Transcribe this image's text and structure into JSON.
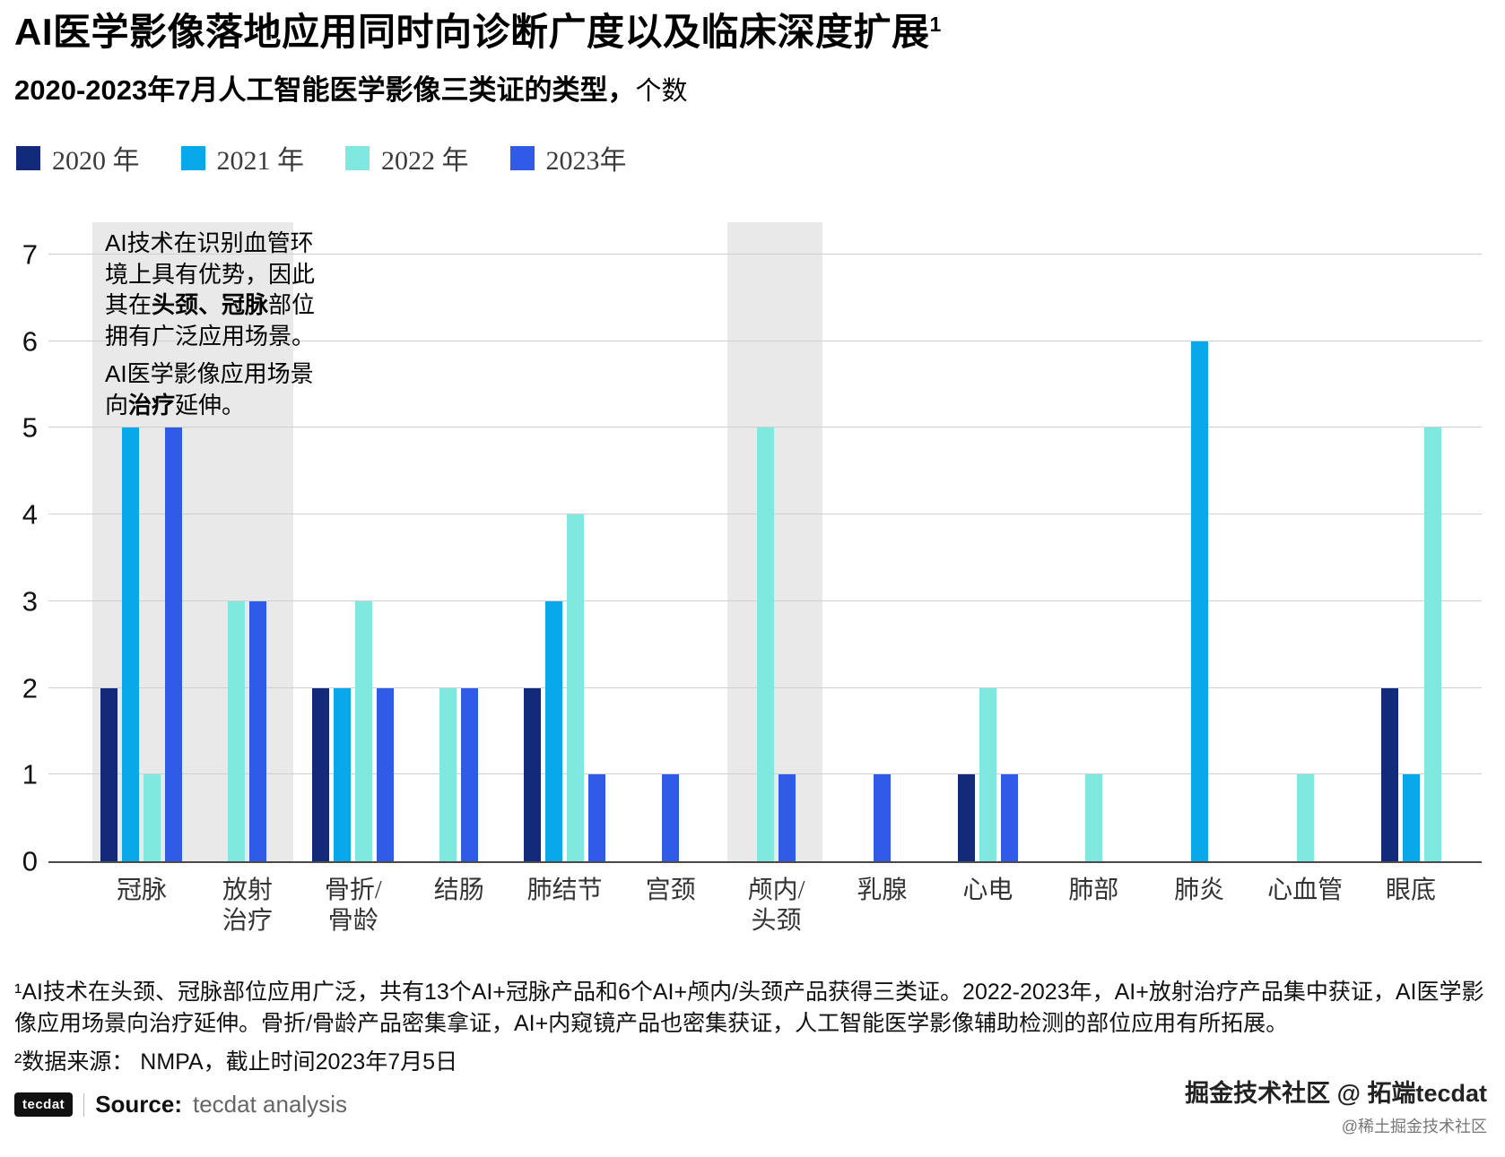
{
  "header": {
    "title": "AI医学影像落地应用同时向诊断广度以及临床深度扩展",
    "title_sup": "1",
    "subtitle_bold": "2020-2023年7月人工智能医学影像三类证的类型，",
    "subtitle_light": "个数"
  },
  "legend": {
    "items": [
      {
        "label": "2020 年",
        "color": "#13297A"
      },
      {
        "label": "2021 年",
        "color": "#09A8EA"
      },
      {
        "label": "2022 年",
        "color": "#7FE9E0"
      },
      {
        "label": "2023年",
        "color": "#2F5BE7"
      }
    ]
  },
  "annotation": {
    "paragraphs": [
      [
        {
          "text": "AI技术在识别血管环境上具有优势，因此其在",
          "bold": false
        },
        {
          "text": "头颈、冠脉",
          "bold": true
        },
        {
          "text": "部位拥有广泛应用场景。",
          "bold": false
        }
      ],
      [
        {
          "text": "AI医学影像应用场景向",
          "bold": false
        },
        {
          "text": "治疗",
          "bold": true
        },
        {
          "text": "延伸。",
          "bold": false
        }
      ]
    ]
  },
  "chart_data": {
    "type": "bar",
    "title": "2020-2023年7月人工智能医学影像三类证的类型，个数",
    "categories": [
      "冠脉",
      "放射\n治疗",
      "骨折/\n骨龄",
      "结肠",
      "肺结节",
      "宫颈",
      "颅内/\n头颈",
      "乳腺",
      "心电",
      "肺部",
      "肺炎",
      "心血管",
      "眼底"
    ],
    "series": [
      {
        "name": "2020 年",
        "color": "#13297A",
        "values": [
          2,
          0,
          2,
          0,
          2,
          0,
          0,
          0,
          1,
          0,
          0,
          0,
          2
        ]
      },
      {
        "name": "2021 年",
        "color": "#09A8EA",
        "values": [
          5,
          0,
          2,
          0,
          3,
          0,
          0,
          0,
          0,
          0,
          6,
          0,
          1
        ]
      },
      {
        "name": "2022 年",
        "color": "#7FE9E0",
        "values": [
          1,
          3,
          3,
          2,
          4,
          0,
          5,
          0,
          2,
          1,
          0,
          1,
          5
        ]
      },
      {
        "name": "2023年",
        "color": "#2F5BE7",
        "values": [
          5,
          3,
          2,
          2,
          1,
          1,
          1,
          1,
          1,
          0,
          0,
          0,
          0
        ]
      }
    ],
    "xlabel": "",
    "ylabel": "个数",
    "ylim": [
      0,
      7.37
    ],
    "yticks": [
      0,
      1,
      2,
      3,
      4,
      5,
      6,
      7
    ],
    "grid": true,
    "legend_position": "top",
    "highlight_bands": [
      {
        "from": 0,
        "to": 1
      },
      {
        "from": 6,
        "to": 6
      }
    ]
  },
  "footnotes": [
    "¹AI技术在头颈、冠脉部位应用广泛，共有13个AI+冠脉产品和6个AI+颅内/头颈产品获得三类证。2022-2023年，AI+放射治疗产品集中获证，AI医学影像应用场景向治疗延伸。骨折/骨龄产品密集拿证，AI+内窥镜产品也密集获证，人工智能医学影像辅助检测的部位应用有所拓展。",
    "²数据来源： NMPA，截止时间2023年7月5日"
  ],
  "source": {
    "logo": "tecdat",
    "label": "Source:",
    "value": "tecdat analysis"
  },
  "watermark": {
    "line1": "掘金技术社区 @ 拓端tecdat",
    "line2": "@稀土掘金技术社区"
  }
}
